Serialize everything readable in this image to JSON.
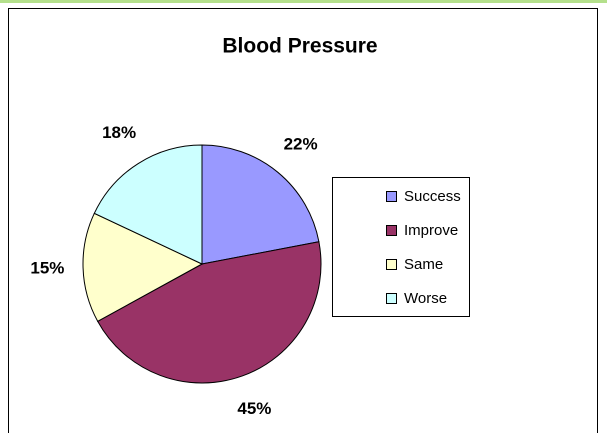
{
  "chart_data": {
    "type": "pie",
    "title": "Blood Pressure",
    "categories": [
      "Success",
      "Improve",
      "Same",
      "Worse"
    ],
    "values": [
      22,
      45,
      15,
      18
    ],
    "value_labels": [
      "22%",
      "45%",
      "15%",
      "18%"
    ],
    "colors": [
      "#9999ff",
      "#993366",
      "#ffffcc",
      "#ccffff"
    ],
    "legend": "right"
  }
}
